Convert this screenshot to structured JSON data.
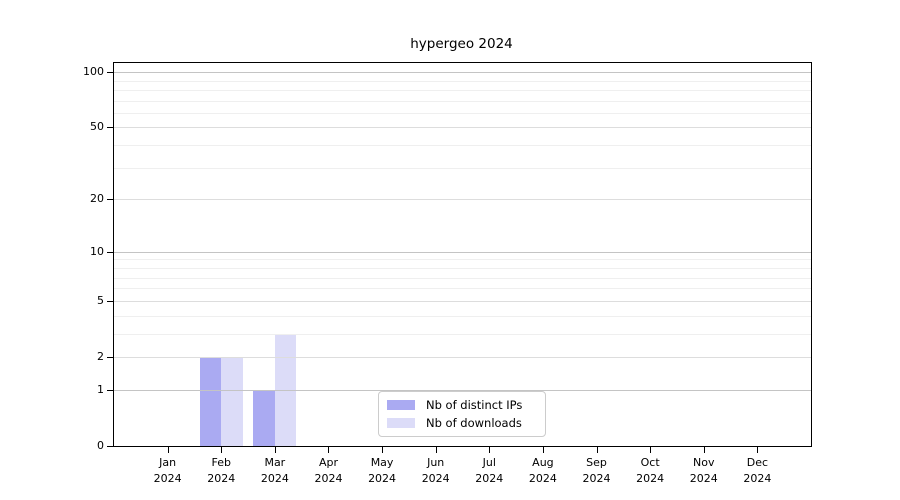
{
  "page": {
    "background": "#ffffff"
  },
  "chart_data": {
    "type": "bar",
    "title": "hypergeo 2024",
    "categories": [
      "Jan",
      "Feb",
      "Mar",
      "Apr",
      "May",
      "Jun",
      "Jul",
      "Aug",
      "Sep",
      "Oct",
      "Nov",
      "Dec"
    ],
    "category_year": "2024",
    "series": [
      {
        "name": "Nb of distinct IPs",
        "color": "#aaaaf2",
        "values": [
          0,
          2,
          1,
          0,
          0,
          0,
          0,
          0,
          0,
          0,
          0,
          0
        ]
      },
      {
        "name": "Nb of downloads",
        "color": "#dcdcf8",
        "values": [
          0,
          2,
          3,
          0,
          0,
          0,
          0,
          0,
          0,
          0,
          0,
          0
        ]
      }
    ],
    "yscale": "log1p",
    "ylim": [
      0,
      112
    ],
    "y_major_ticks": [
      0,
      1,
      2,
      5,
      10,
      20,
      50,
      100
    ],
    "y_minor_gridlines": [
      3,
      4,
      6,
      7,
      8,
      9,
      30,
      40,
      60,
      70,
      80,
      90
    ],
    "grid": true,
    "legend_position": "inside-bottom-center",
    "colors": {
      "grid_decade": "#c4c4c4",
      "grid_major": "#dddddd",
      "grid_minor": "#efefef",
      "axis": "#000000",
      "legend_border": "#cccccc",
      "text": "#000000"
    }
  }
}
